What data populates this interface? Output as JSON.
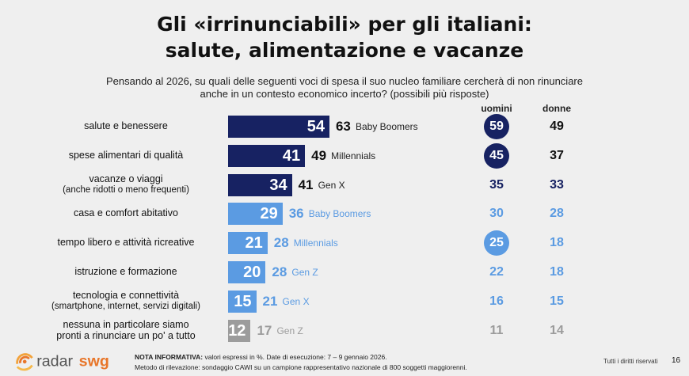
{
  "title_line1": "Gli «irrinunciabili» per gli italiani:",
  "title_line2": "salute, alimentazione e vacanze",
  "subtitle_line1": "Pensando al 2026, su quali delle seguenti voci di spesa il suo nucleo familiare cercherà di non rinunciare",
  "subtitle_line2": "anche in un contesto economico incerto? (possibili più risposte)",
  "col_men": "uomini",
  "col_women": "donne",
  "colors": {
    "dark": "#172262",
    "light": "#5b9be2",
    "grey": "#9c9c9c"
  },
  "chart_data": {
    "type": "bar",
    "orientation": "horizontal",
    "categories": [
      "salute e benessere",
      "spese alimentari di qualità",
      "vacanze o viaggi (anche ridotti o meno frequenti)",
      "casa e comfort abitativo",
      "tempo libero e attività ricreative",
      "istruzione e formazione",
      "tecnologia e connettività (smartphone, internet, servizi digitali)",
      "nessuna in particolare siamo pronti a rinunciare un po' a tutto"
    ],
    "values": [
      54,
      41,
      34,
      29,
      21,
      20,
      15,
      12
    ],
    "generation_values": [
      63,
      49,
      41,
      36,
      28,
      28,
      21,
      17
    ],
    "generation_names": [
      "Baby Boomers",
      "Millennials",
      "Gen X",
      "Baby Boomers",
      "Millennials",
      "Gen Z",
      "Gen X",
      "Gen Z"
    ],
    "men": [
      59,
      45,
      35,
      30,
      25,
      22,
      16,
      11
    ],
    "women": [
      49,
      37,
      33,
      28,
      18,
      18,
      15,
      14
    ],
    "men_highlight": [
      true,
      true,
      false,
      false,
      true,
      false,
      false,
      false
    ],
    "xlim": [
      0,
      100
    ]
  },
  "rows": [
    {
      "label1": "salute e benessere",
      "label2": ""
    },
    {
      "label1": "spese alimentari di qualità",
      "label2": ""
    },
    {
      "label1": "vacanze o viaggi",
      "label2": "(anche ridotti o meno frequenti)"
    },
    {
      "label1": "casa e comfort abitativo",
      "label2": ""
    },
    {
      "label1": "tempo libero e attività ricreative",
      "label2": ""
    },
    {
      "label1": "istruzione e formazione",
      "label2": ""
    },
    {
      "label1": "tecnologia e connettività",
      "label2": "(smartphone, internet, servizi digitali)"
    },
    {
      "label1": "nessuna in particolare siamo",
      "label2": "pronti a rinunciare un po' a tutto"
    }
  ],
  "footer": {
    "note_label": "NOTA INFORMATIVA:",
    "note_text": " valori espressi in %. Date di esecuzione: 7 – 9 gennaio 2026.",
    "method_text": "Metodo di rilevazione: sondaggio CAWI su un campione rappresentativo nazionale di 800 soggetti maggiorenni."
  },
  "logo_text_radar": "radar",
  "logo_text_swg": "swg",
  "rights": "Tutti i diritti riservati",
  "page_number": "16"
}
